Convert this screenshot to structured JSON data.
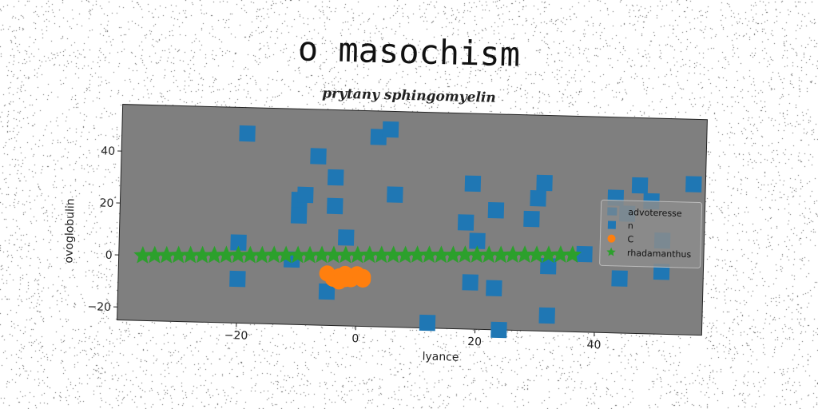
{
  "title": "o masochism",
  "subtitle": "prytany sphingomyelin",
  "chart_data": {
    "type": "scatter",
    "xlabel": "lyance",
    "ylabel": "ovoglobulin",
    "xlim": [
      -40,
      58
    ],
    "ylim": [
      -25,
      58
    ],
    "xticks": [
      -20,
      0,
      20,
      40
    ],
    "yticks": [
      -20,
      0,
      20,
      40
    ],
    "xtick_labels": [
      "−20",
      "0",
      "20",
      "40"
    ],
    "ytick_labels": [
      "−20",
      "0",
      "20",
      "40"
    ],
    "grid": false,
    "plot_background": "#7f7f7f",
    "legend_placement": "right",
    "legend": [
      "advoteresse",
      "n",
      "C",
      "rhadamanthus"
    ],
    "series": [
      {
        "name": "n",
        "marker": "square",
        "color": "#1f77b4",
        "points": [
          [
            -19,
            48
          ],
          [
            3,
            48
          ],
          [
            5,
            51
          ],
          [
            -7,
            40
          ],
          [
            -4,
            32
          ],
          [
            -10,
            23
          ],
          [
            -9,
            25
          ],
          [
            -4,
            21
          ],
          [
            -10,
            17
          ],
          [
            6,
            26
          ],
          [
            -20,
            6
          ],
          [
            -2,
            9
          ],
          [
            -11,
            0
          ],
          [
            -20,
            -8
          ],
          [
            -5,
            -12
          ],
          [
            19,
            31
          ],
          [
            18,
            16
          ],
          [
            20,
            9
          ],
          [
            23,
            21
          ],
          [
            19,
            -7
          ],
          [
            23,
            -9
          ],
          [
            31,
            32
          ],
          [
            30,
            26
          ],
          [
            29,
            18
          ],
          [
            32,
            -19
          ],
          [
            32,
            0
          ],
          [
            38,
            5
          ],
          [
            43,
            27
          ],
          [
            45,
            21
          ],
          [
            47,
            32
          ],
          [
            49,
            26
          ],
          [
            44,
            -4
          ],
          [
            51,
            -1
          ],
          [
            56,
            33
          ],
          [
            51,
            11
          ],
          [
            12,
            -23
          ],
          [
            24,
            -25
          ]
        ]
      },
      {
        "name": "C",
        "marker": "circle",
        "color": "#ff7f0e",
        "points": [
          [
            -5,
            -5
          ],
          [
            -4,
            -7
          ],
          [
            -3,
            -6
          ],
          [
            -2,
            -5
          ],
          [
            -1,
            -6
          ],
          [
            -1,
            -7
          ],
          [
            0,
            -6
          ],
          [
            0,
            -5
          ],
          [
            1,
            -7
          ],
          [
            1,
            -6
          ],
          [
            -3,
            -8
          ],
          [
            -2,
            -7
          ]
        ]
      },
      {
        "name": "rhadamanthus",
        "marker": "star",
        "color": "#2ca02c",
        "points": [
          [
            -36,
            0
          ],
          [
            -34,
            0.2
          ],
          [
            -32,
            0.3
          ],
          [
            -30,
            0.5
          ],
          [
            -28,
            0.6
          ],
          [
            -26,
            0.7
          ],
          [
            -24,
            0.8
          ],
          [
            -22,
            1
          ],
          [
            -20,
            1.1
          ],
          [
            -18,
            1.2
          ],
          [
            -16,
            1.3
          ],
          [
            -14,
            1.5
          ],
          [
            -12,
            1.6
          ],
          [
            -10,
            1.7
          ],
          [
            -8,
            1.8
          ],
          [
            -6,
            2
          ],
          [
            -4,
            2.1
          ],
          [
            -2,
            2.2
          ],
          [
            0,
            2.3
          ],
          [
            2,
            2.5
          ],
          [
            4,
            2.6
          ],
          [
            6,
            2.7
          ],
          [
            8,
            2.8
          ],
          [
            10,
            3
          ],
          [
            12,
            3.1
          ],
          [
            14,
            3.2
          ],
          [
            16,
            3.3
          ],
          [
            18,
            3.5
          ],
          [
            20,
            3.6
          ],
          [
            22,
            3.7
          ],
          [
            24,
            3.8
          ],
          [
            26,
            4
          ],
          [
            28,
            4.1
          ],
          [
            30,
            4.2
          ],
          [
            32,
            4.3
          ],
          [
            34,
            4.5
          ],
          [
            36,
            4.6
          ]
        ]
      }
    ]
  }
}
